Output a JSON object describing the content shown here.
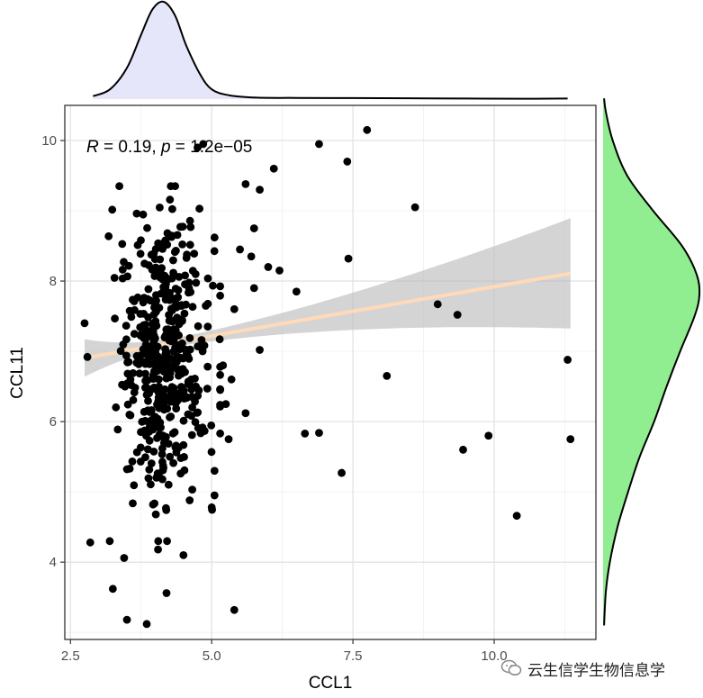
{
  "chart_data": {
    "type": "scatter",
    "title": "",
    "xlabel": "CCL1",
    "ylabel": "CCL11",
    "xlim": [
      2.4,
      11.8
    ],
    "ylim": [
      2.9,
      10.5
    ],
    "x_ticks": [
      2.5,
      5.0,
      7.5,
      10.0
    ],
    "x_tick_labels": [
      "2.5",
      "5.0",
      "7.5",
      "10.0"
    ],
    "y_ticks": [
      4,
      6,
      8,
      10
    ],
    "y_tick_labels": [
      "4",
      "6",
      "8",
      "10"
    ],
    "grid": true,
    "annotation": {
      "r_symbol": "R",
      "r_value": " = 0.19, ",
      "p_symbol": "p",
      "p_value": " = 1.2e−05"
    },
    "regression": {
      "x_range": [
        2.75,
        11.35
      ],
      "intercept": 6.52,
      "slope": 0.14,
      "ci_start": [
        6.65,
        7.18
      ],
      "ci_end": [
        7.35,
        8.92
      ],
      "line_color": "#FFDAB9",
      "band_color": "#BDBDBD"
    },
    "outliers": [
      {
        "x": 7.75,
        "y": 10.15
      },
      {
        "x": 6.9,
        "y": 9.95
      },
      {
        "x": 7.4,
        "y": 9.7
      },
      {
        "x": 8.6,
        "y": 9.05
      },
      {
        "x": 7.42,
        "y": 8.32
      },
      {
        "x": 6.5,
        "y": 7.85
      },
      {
        "x": 9.0,
        "y": 7.67
      },
      {
        "x": 9.35,
        "y": 7.52
      },
      {
        "x": 5.85,
        "y": 7.02
      },
      {
        "x": 8.1,
        "y": 6.65
      },
      {
        "x": 11.3,
        "y": 6.88
      },
      {
        "x": 6.65,
        "y": 5.83
      },
      {
        "x": 6.9,
        "y": 5.84
      },
      {
        "x": 11.35,
        "y": 5.75
      },
      {
        "x": 9.9,
        "y": 5.8
      },
      {
        "x": 9.45,
        "y": 5.6
      },
      {
        "x": 7.3,
        "y": 5.27
      },
      {
        "x": 10.4,
        "y": 4.66
      },
      {
        "x": 5.4,
        "y": 3.32
      },
      {
        "x": 3.85,
        "y": 3.12
      },
      {
        "x": 3.5,
        "y": 3.18
      },
      {
        "x": 4.2,
        "y": 3.56
      },
      {
        "x": 3.25,
        "y": 3.62
      },
      {
        "x": 2.85,
        "y": 4.28
      },
      {
        "x": 3.45,
        "y": 4.06
      },
      {
        "x": 4.5,
        "y": 4.1
      },
      {
        "x": 4.05,
        "y": 4.18
      },
      {
        "x": 5.0,
        "y": 4.78
      },
      {
        "x": 5.6,
        "y": 6.12
      },
      {
        "x": 5.25,
        "y": 6.25
      },
      {
        "x": 6.2,
        "y": 8.15
      },
      {
        "x": 6.0,
        "y": 8.2
      },
      {
        "x": 5.7,
        "y": 8.35
      },
      {
        "x": 5.5,
        "y": 8.45
      },
      {
        "x": 5.75,
        "y": 8.75
      },
      {
        "x": 5.05,
        "y": 8.62
      },
      {
        "x": 5.85,
        "y": 9.3
      },
      {
        "x": 5.6,
        "y": 9.38
      },
      {
        "x": 6.1,
        "y": 9.6
      },
      {
        "x": 4.85,
        "y": 9.95
      },
      {
        "x": 4.75,
        "y": 9.9
      },
      {
        "x": 5.75,
        "y": 7.9
      },
      {
        "x": 5.4,
        "y": 7.6
      },
      {
        "x": 2.8,
        "y": 6.92
      },
      {
        "x": 2.75,
        "y": 7.4
      },
      {
        "x": 5.2,
        "y": 6.8
      },
      {
        "x": 5.15,
        "y": 6.45
      },
      {
        "x": 5.35,
        "y": 6.6
      },
      {
        "x": 5.3,
        "y": 5.75
      },
      {
        "x": 5.05,
        "y": 5.3
      },
      {
        "x": 5.05,
        "y": 4.95
      }
    ],
    "cluster": {
      "count": 460,
      "x_center": 4.15,
      "x_spread": 0.4,
      "x_min": 2.85,
      "x_max": 5.15,
      "y_center": 6.9,
      "y_spread": 1.05,
      "y_min": 4.3,
      "y_max": 9.35
    },
    "marginal_x": {
      "fill": "#E6E6FA",
      "density": [
        [
          2.9,
          0.03
        ],
        [
          3.2,
          0.1
        ],
        [
          3.5,
          0.32
        ],
        [
          3.75,
          0.66
        ],
        [
          3.95,
          0.92
        ],
        [
          4.15,
          1.0
        ],
        [
          4.35,
          0.86
        ],
        [
          4.55,
          0.55
        ],
        [
          4.8,
          0.25
        ],
        [
          5.0,
          0.1
        ],
        [
          5.3,
          0.04
        ],
        [
          5.8,
          0.015
        ],
        [
          6.5,
          0.012
        ],
        [
          7.5,
          0.01
        ],
        [
          8.5,
          0.008
        ],
        [
          9.5,
          0.006
        ],
        [
          10.5,
          0.004
        ],
        [
          11.3,
          0.006
        ]
      ]
    },
    "marginal_y": {
      "fill": "#90EE90",
      "density": [
        [
          3.1,
          0.01
        ],
        [
          3.6,
          0.03
        ],
        [
          4.0,
          0.07
        ],
        [
          4.5,
          0.15
        ],
        [
          5.0,
          0.26
        ],
        [
          5.5,
          0.38
        ],
        [
          6.0,
          0.53
        ],
        [
          6.5,
          0.66
        ],
        [
          7.0,
          0.8
        ],
        [
          7.5,
          0.95
        ],
        [
          7.8,
          1.0
        ],
        [
          8.1,
          0.97
        ],
        [
          8.5,
          0.82
        ],
        [
          9.0,
          0.52
        ],
        [
          9.5,
          0.25
        ],
        [
          10.0,
          0.1
        ],
        [
          10.4,
          0.03
        ],
        [
          10.6,
          0.01
        ]
      ]
    }
  },
  "watermark": {
    "text": "云生信学生物信息学",
    "icon": "wechat-icon"
  }
}
